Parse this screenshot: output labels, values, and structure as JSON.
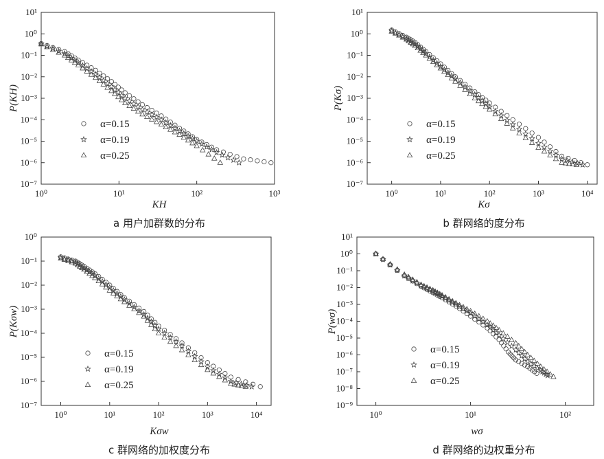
{
  "chart_data": [
    {
      "type": "scatter",
      "caption": "a 用户加群数的分布",
      "xlabel": "K_H",
      "ylabel": "P(K_H)",
      "x_scale": "log",
      "y_scale": "log",
      "xlim_exp": [
        0,
        3
      ],
      "ylim_exp": [
        -7,
        1
      ],
      "x_ticks": [
        "10^0",
        "10^1",
        "10^2",
        "10^3"
      ],
      "y_ticks": [
        "10^-7",
        "10^-6",
        "10^-5",
        "10^-4",
        "10^-3",
        "10^-2",
        "10^-1",
        "10^0",
        "10^1"
      ],
      "legend_placement": "lower-left",
      "series": [
        {
          "name": "α=0.15",
          "marker": "circle",
          "x": [
            1,
            2,
            3,
            5,
            8,
            12,
            20,
            35,
            60,
            100,
            180,
            400,
            900
          ],
          "y": [
            0.35,
            0.15,
            0.06,
            0.02,
            0.006,
            0.0018,
            0.0005,
            0.00015,
            4e-05,
            1.2e-05,
            4e-06,
            1.5e-06,
            1e-06
          ]
        },
        {
          "name": "α=0.19",
          "marker": "star",
          "x": [
            1,
            2,
            3,
            5,
            8,
            12,
            20,
            35,
            60,
            100,
            180,
            350
          ],
          "y": [
            0.35,
            0.12,
            0.045,
            0.013,
            0.0035,
            0.001,
            0.0003,
            0.0001,
            3e-05,
            1e-05,
            3e-06,
            1e-06
          ]
        },
        {
          "name": "α=0.25",
          "marker": "triangle",
          "x": [
            1,
            2,
            3,
            5,
            8,
            12,
            20,
            35,
            60,
            100,
            200
          ],
          "y": [
            0.33,
            0.1,
            0.035,
            0.009,
            0.0022,
            0.0006,
            0.00018,
            6e-05,
            2e-05,
            6e-06,
            1e-06
          ]
        }
      ]
    },
    {
      "type": "scatter",
      "caption": "b 群网络的度分布",
      "xlabel": "K_σ",
      "ylabel": "P(K_σ)",
      "x_scale": "log",
      "y_scale": "log",
      "xlim_exp": [
        -0.5,
        4.2
      ],
      "ylim_exp": [
        -7,
        1
      ],
      "x_ticks": [
        "10^0",
        "10^1",
        "10^2",
        "10^3",
        "10^4"
      ],
      "y_ticks": [
        "10^-7",
        "10^-6",
        "10^-5",
        "10^-4",
        "10^-3",
        "10^-2",
        "10^-1",
        "10^0",
        "10^1"
      ],
      "legend_placement": "lower-left",
      "series": [
        {
          "name": "α=0.15",
          "marker": "circle",
          "x": [
            1,
            2,
            3,
            5,
            10,
            20,
            50,
            100,
            300,
            1000,
            3000,
            10000
          ],
          "y": [
            1.5,
            0.7,
            0.4,
            0.15,
            0.04,
            0.01,
            0.002,
            0.0006,
            0.0001,
            1.5e-05,
            2e-06,
            8e-07
          ]
        },
        {
          "name": "α=0.19",
          "marker": "star",
          "x": [
            1,
            2,
            3,
            5,
            10,
            20,
            50,
            100,
            300,
            1000,
            3000,
            8000
          ],
          "y": [
            1.4,
            0.6,
            0.33,
            0.12,
            0.03,
            0.008,
            0.0015,
            0.0004,
            6e-05,
            8e-06,
            1.5e-06,
            8e-07
          ]
        },
        {
          "name": "α=0.25",
          "marker": "triangle",
          "x": [
            1,
            2,
            3,
            5,
            10,
            20,
            50,
            100,
            300,
            1000,
            3000,
            6000
          ],
          "y": [
            1.3,
            0.55,
            0.28,
            0.1,
            0.025,
            0.006,
            0.001,
            0.0003,
            4e-05,
            5e-06,
            1e-06,
            8e-07
          ]
        }
      ]
    },
    {
      "type": "scatter",
      "caption": "c 群网络的加权度分布",
      "xlabel": "K_σw",
      "ylabel": "P(K_σw)",
      "x_scale": "log",
      "y_scale": "log",
      "xlim_exp": [
        -0.4,
        4.3
      ],
      "ylim_exp": [
        -7,
        0
      ],
      "x_ticks": [
        "10^0",
        "10^1",
        "10^2",
        "10^3",
        "10^4"
      ],
      "y_ticks": [
        "10^-7",
        "10^-6",
        "10^-5",
        "10^-4",
        "10^-3",
        "10^-2",
        "10^-1",
        "10^0"
      ],
      "legend_placement": "lower-left",
      "series": [
        {
          "name": "α=0.15",
          "marker": "circle",
          "x": [
            1,
            2,
            3,
            5,
            10,
            20,
            50,
            100,
            300,
            1000,
            3000,
            12000
          ],
          "y": [
            0.15,
            0.1,
            0.06,
            0.03,
            0.01,
            0.003,
            0.0008,
            0.0002,
            4e-05,
            6e-06,
            1.5e-06,
            6e-07
          ]
        },
        {
          "name": "α=0.19",
          "marker": "star",
          "x": [
            1,
            2,
            3,
            5,
            10,
            20,
            50,
            100,
            300,
            1000,
            3000,
            8000
          ],
          "y": [
            0.14,
            0.09,
            0.05,
            0.025,
            0.008,
            0.0025,
            0.0006,
            0.00015,
            3e-05,
            4e-06,
            1e-06,
            6e-07
          ]
        },
        {
          "name": "α=0.25",
          "marker": "triangle",
          "x": [
            1,
            2,
            3,
            5,
            10,
            20,
            50,
            100,
            300,
            1000,
            3000,
            6000
          ],
          "y": [
            0.13,
            0.08,
            0.045,
            0.02,
            0.006,
            0.002,
            0.0005,
            0.0001,
            2e-05,
            3e-06,
            8e-07,
            6e-07
          ]
        }
      ]
    },
    {
      "type": "scatter",
      "caption": "d 群网络的边权重分布",
      "xlabel": "w_σ",
      "ylabel": "P(w_σ)",
      "x_scale": "log",
      "y_scale": "log",
      "xlim_exp": [
        -0.2,
        2.3
      ],
      "ylim_exp": [
        -9,
        1
      ],
      "x_ticks": [
        "10^0",
        "10^1",
        "10^2"
      ],
      "y_ticks": [
        "10^-9",
        "10^-8",
        "10^-7",
        "10^-6",
        "10^-5",
        "10^-4",
        "10^-3",
        "10^-2",
        "10^-1",
        "10^0",
        "10^1"
      ],
      "legend_placement": "lower-left",
      "series": [
        {
          "name": "α=0.15",
          "marker": "circle",
          "x": [
            1,
            2,
            3,
            4,
            5,
            7,
            10,
            15,
            20,
            25,
            30,
            40,
            50
          ],
          "y": [
            1,
            0.05,
            0.012,
            0.005,
            0.0025,
            0.0008,
            0.0002,
            4e-05,
            8e-06,
            1.5e-06,
            5e-07,
            2e-07,
            8e-08
          ]
        },
        {
          "name": "α=0.19",
          "marker": "star",
          "x": [
            1,
            2,
            3,
            4,
            5,
            7,
            10,
            15,
            20,
            30,
            40,
            55,
            65
          ],
          "y": [
            1,
            0.05,
            0.013,
            0.006,
            0.003,
            0.001,
            0.0003,
            6e-05,
            1.5e-05,
            2e-06,
            4e-07,
            1.2e-07,
            6e-08
          ]
        },
        {
          "name": "α=0.25",
          "marker": "triangle",
          "x": [
            1,
            2,
            3,
            4,
            5,
            7,
            10,
            15,
            20,
            30,
            40,
            55,
            75
          ],
          "y": [
            1,
            0.06,
            0.015,
            0.007,
            0.0035,
            0.0012,
            0.0004,
            0.0001,
            3e-05,
            5e-06,
            1e-06,
            2e-07,
            5e-08
          ]
        }
      ]
    }
  ]
}
